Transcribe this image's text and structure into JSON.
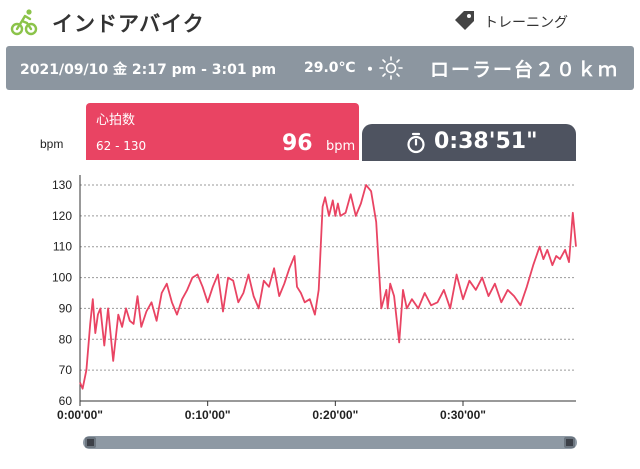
{
  "app": {
    "title": "インドアバイク",
    "icon": "cycling-icon"
  },
  "header": {
    "training_label": "トレーニング",
    "tag_icon": "tag-icon"
  },
  "session": {
    "date_range": "2021/09/10 金 2:17 pm - 3:01 pm",
    "temperature": "29.0℃",
    "separator": "・",
    "weather_icon": "sun-icon",
    "course": "ローラー台２０ｋｍ"
  },
  "heart_rate": {
    "title": "心拍数",
    "range": "62 - 130",
    "value": "96",
    "unit": "bpm"
  },
  "timer": {
    "icon": "stopwatch-icon",
    "value": "0:38'51\""
  },
  "colors": {
    "accent": "#e94463",
    "info_bar": "#8c96a0",
    "timer_bg": "#4e5360",
    "app_icon": "#8bc34a"
  },
  "chart_data": {
    "type": "line",
    "ylabel": "bpm",
    "ylim": [
      60,
      130
    ],
    "y_ticks": [
      "60",
      "70",
      "80",
      "90",
      "100",
      "110",
      "120",
      "130"
    ],
    "x_ticks": [
      "0:00'00\"",
      "0:10'00\"",
      "0:20'00\"",
      "0:30'00\""
    ],
    "x_tick_minutes": [
      0,
      10,
      20,
      30
    ],
    "xlim_minutes": [
      0,
      38.85
    ],
    "grid": true,
    "series": [
      {
        "color": "#e94463",
        "minutes": [
          0,
          0.2,
          0.5,
          0.8,
          1.0,
          1.2,
          1.4,
          1.6,
          1.9,
          2.2,
          2.6,
          3.0,
          3.3,
          3.6,
          3.9,
          4.2,
          4.5,
          4.8,
          5.2,
          5.6,
          6.0,
          6.4,
          6.8,
          7.2,
          7.6,
          8.0,
          8.4,
          8.8,
          9.2,
          9.6,
          10.0,
          10.4,
          10.8,
          11.2,
          11.6,
          12.0,
          12.4,
          12.8,
          13.2,
          13.6,
          14.0,
          14.4,
          14.8,
          15.2,
          15.6,
          16.0,
          16.4,
          16.8,
          17.0,
          17.3,
          17.6,
          18.0,
          18.4,
          18.7,
          19.0,
          19.2,
          19.5,
          19.8,
          20.0,
          20.2,
          20.4,
          20.8,
          21.2,
          21.6,
          22.0,
          22.4,
          22.8,
          23.2,
          23.6,
          24.0,
          24.1,
          24.3,
          24.6,
          25.0,
          25.3,
          25.6,
          26.0,
          26.5,
          27.0,
          27.5,
          28.0,
          28.5,
          29.0,
          29.5,
          30.0,
          30.5,
          31.0,
          31.5,
          32.0,
          32.5,
          33.0,
          33.5,
          34.0,
          34.5,
          35.0,
          35.5,
          36.0,
          36.3,
          36.6,
          37.0,
          37.3,
          37.6,
          38.0,
          38.3,
          38.6,
          38.85
        ],
        "values": [
          66,
          64,
          70,
          85,
          93,
          82,
          88,
          90,
          78,
          90,
          73,
          88,
          84,
          90,
          86,
          85,
          94,
          84,
          89,
          92,
          86,
          95,
          98,
          92,
          88,
          93,
          96,
          100,
          101,
          97,
          92,
          97,
          101,
          89,
          100,
          99,
          92,
          95,
          101,
          94,
          90,
          99,
          97,
          103,
          94,
          98,
          103,
          107,
          97,
          95,
          92,
          93,
          88,
          96,
          123,
          126,
          120,
          125,
          120,
          124,
          120,
          121,
          127,
          120,
          124,
          130,
          128,
          118,
          90,
          96,
          90,
          98,
          94,
          79,
          96,
          90,
          93,
          90,
          95,
          91,
          92,
          96,
          90,
          101,
          93,
          99,
          96,
          100,
          94,
          98,
          92,
          96,
          94,
          91,
          97,
          104,
          110,
          106,
          109,
          104,
          107,
          106,
          109,
          105,
          121,
          110
        ]
      }
    ]
  }
}
